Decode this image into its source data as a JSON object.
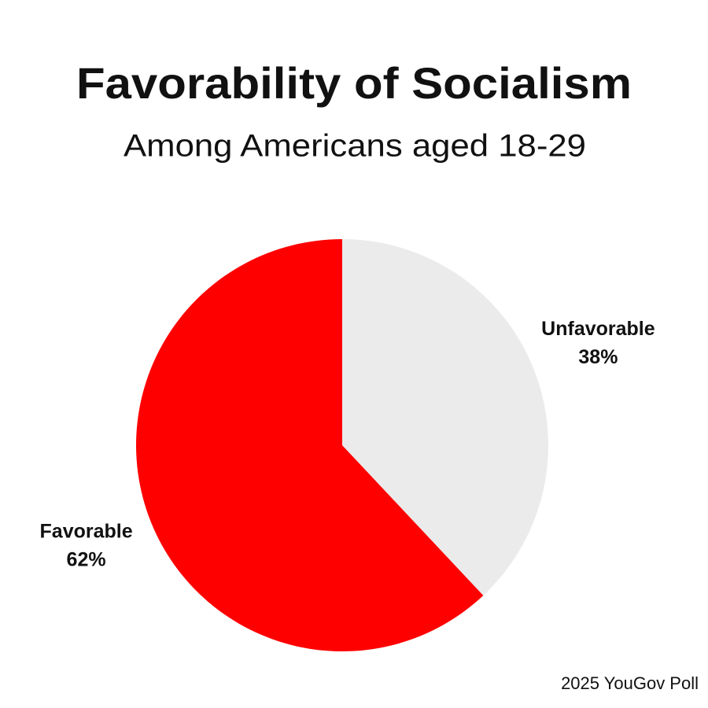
{
  "chart_data": {
    "type": "pie",
    "title": "Favorability of Socialism",
    "subtitle": "Among Americans aged 18-29",
    "categories": [
      "Unfavorable",
      "Favorable"
    ],
    "values": [
      38,
      62
    ],
    "value_labels": [
      "38%",
      "62%"
    ],
    "colors": [
      "#ebebeb",
      "#fe0000"
    ],
    "source": "2025 YouGov Poll"
  }
}
